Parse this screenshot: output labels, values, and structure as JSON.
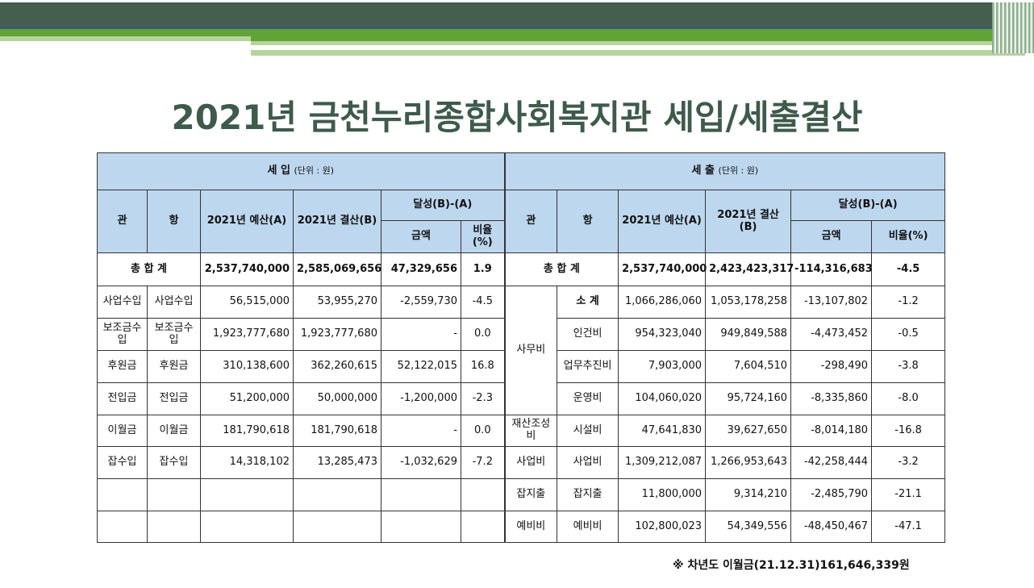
{
  "title": "2021년 금천누리종합사회복지관 세입/세출결산",
  "income": {
    "label": "세 입",
    "unit": "(단위 : 원)",
    "h_gwan": "관",
    "h_hang": "항",
    "h_budget": "2021년 예산(A)",
    "h_settle": "2021년 결산(B)",
    "h_achieve": "달성(B)-(A)",
    "h_amount": "금액",
    "h_ratio": "비율(%)",
    "total": {
      "label": "총 합 계",
      "budget": "2,537,740,000",
      "settle": "2,585,069,656",
      "amount": "47,329,656",
      "ratio": "1.9"
    },
    "rows": [
      {
        "gwan": "사업수입",
        "hang": "사업수입",
        "budget": "56,515,000",
        "settle": "53,955,270",
        "amount": "-2,559,730",
        "ratio": "-4.5"
      },
      {
        "gwan": "보조금수입",
        "hang": "보조금수입",
        "budget": "1,923,777,680",
        "settle": "1,923,777,680",
        "amount": "-",
        "ratio": "0.0"
      },
      {
        "gwan": "후원금",
        "hang": "후원금",
        "budget": "310,138,600",
        "settle": "362,260,615",
        "amount": "52,122,015",
        "ratio": "16.8"
      },
      {
        "gwan": "전입금",
        "hang": "전입금",
        "budget": "51,200,000",
        "settle": "50,000,000",
        "amount": "-1,200,000",
        "ratio": "-2.3"
      },
      {
        "gwan": "이월금",
        "hang": "이월금",
        "budget": "181,790,618",
        "settle": "181,790,618",
        "amount": "-",
        "ratio": "0.0"
      },
      {
        "gwan": "잡수입",
        "hang": "잡수입",
        "budget": "14,318,102",
        "settle": "13,285,473",
        "amount": "-1,032,629",
        "ratio": "-7.2"
      }
    ]
  },
  "expense": {
    "label": "세 출",
    "unit": "(단위 : 원)",
    "h_gwan": "관",
    "h_hang": "항",
    "h_budget": "2021년 예산(A)",
    "h_settle": "2021년 결산(B)",
    "h_achieve": "달성(B)-(A)",
    "h_amount": "금액",
    "h_ratio": "비율(%)",
    "total": {
      "label": "총 합 계",
      "budget": "2,537,740,000",
      "settle": "2,423,423,317",
      "amount": "-114,316,683",
      "ratio": "-4.5"
    },
    "rows": [
      {
        "gwan": "사무비",
        "hang": "소 계",
        "budget": "1,066,286,060",
        "settle": "1,053,178,258",
        "amount": "-13,107,802",
        "ratio": "-1.2"
      },
      {
        "gwan": "",
        "hang": "인건비",
        "budget": "954,323,040",
        "settle": "949,849,588",
        "amount": "-4,473,452",
        "ratio": "-0.5"
      },
      {
        "gwan": "",
        "hang": "업무추진비",
        "budget": "7,903,000",
        "settle": "7,604,510",
        "amount": "-298,490",
        "ratio": "-3.8"
      },
      {
        "gwan": "",
        "hang": "운영비",
        "budget": "104,060,020",
        "settle": "95,724,160",
        "amount": "-8,335,860",
        "ratio": "-8.0"
      },
      {
        "gwan": "재산조성비",
        "hang": "시설비",
        "budget": "47,641,830",
        "settle": "39,627,650",
        "amount": "-8,014,180",
        "ratio": "-16.8"
      },
      {
        "gwan": "사업비",
        "hang": "사업비",
        "budget": "1,309,212,087",
        "settle": "1,266,953,643",
        "amount": "-42,258,444",
        "ratio": "-3.2"
      },
      {
        "gwan": "잡지출",
        "hang": "잡지출",
        "budget": "11,800,000",
        "settle": "9,314,210",
        "amount": "-2,485,790",
        "ratio": "-21.1"
      },
      {
        "gwan": "예비비",
        "hang": "예비비",
        "budget": "102,800,023",
        "settle": "54,349,556",
        "amount": "-48,450,467",
        "ratio": "-47.1"
      }
    ]
  },
  "note": "※ 차년도 이월금(21.12.31)161,646,339원"
}
